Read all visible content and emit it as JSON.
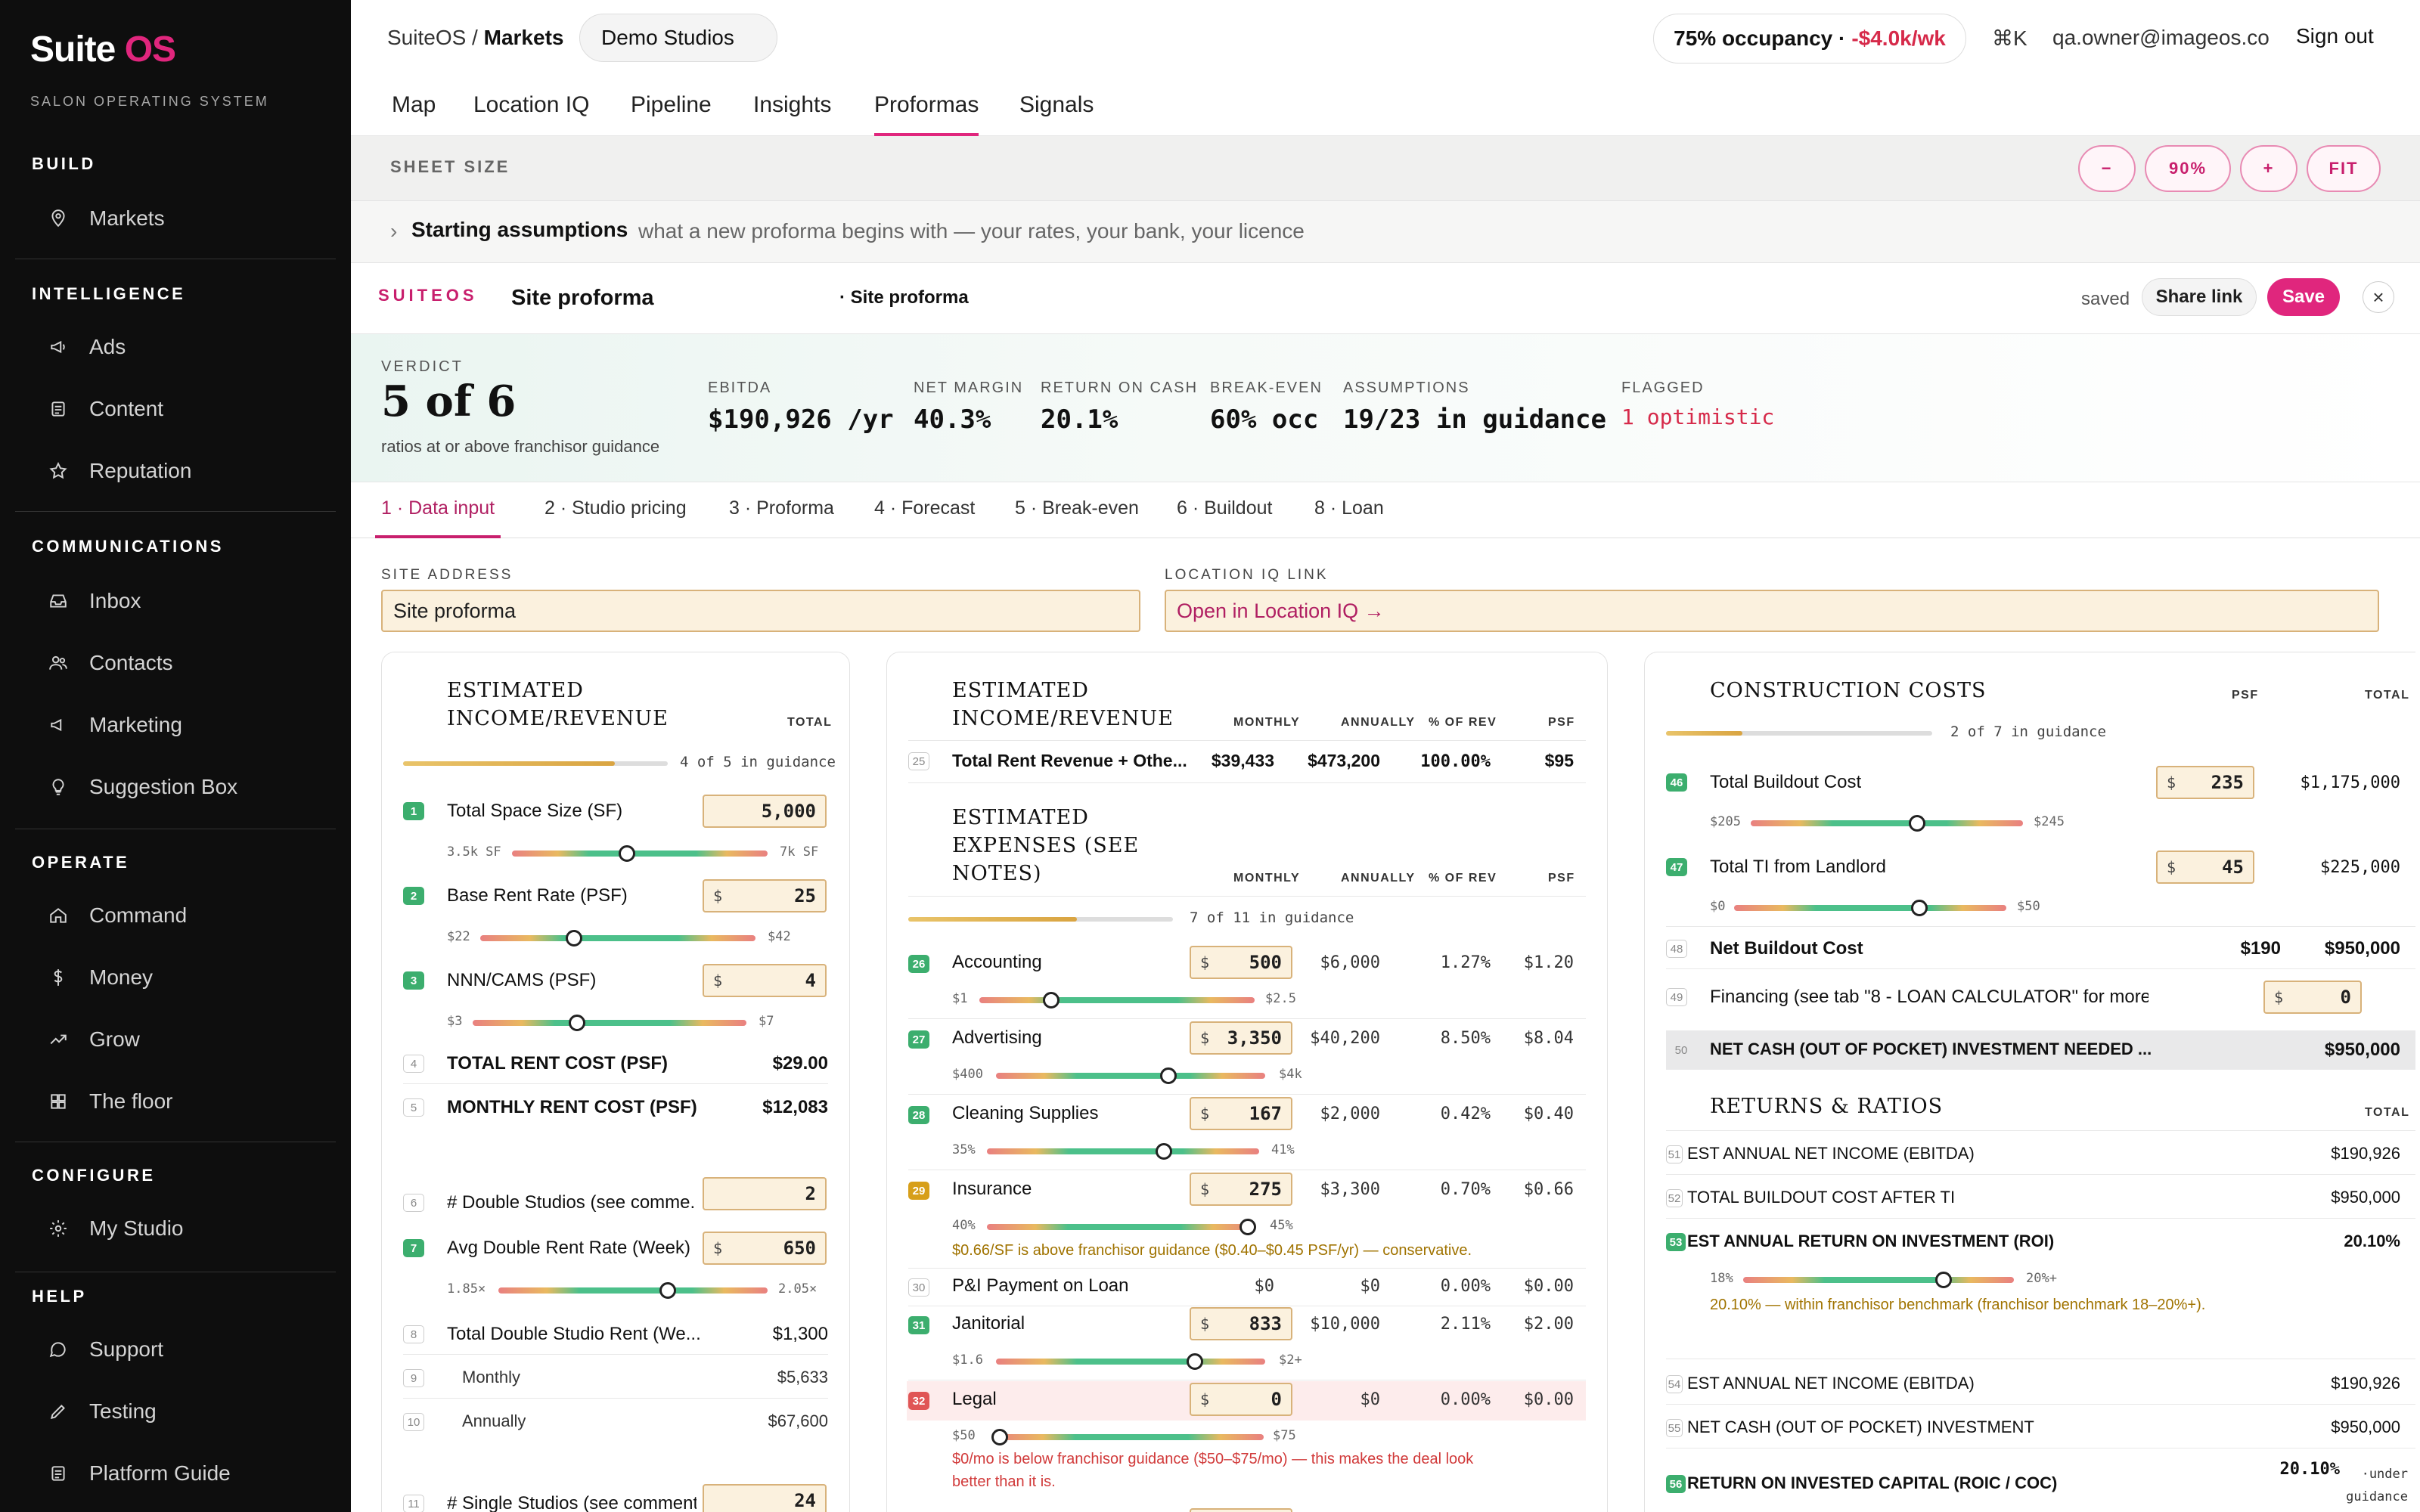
{
  "sidebar": {
    "brand_a": "Suite",
    "brand_b": "OS",
    "subtitle": "SALON OPERATING SYSTEM",
    "sections": {
      "build": "BUILD",
      "intelligence": "INTELLIGENCE",
      "communications": "COMMUNICATIONS",
      "operate": "OPERATE",
      "configure": "CONFIGURE",
      "help": "HELP"
    },
    "items": {
      "markets": "Markets",
      "ads": "Ads",
      "content": "Content",
      "reputation": "Reputation",
      "inbox": "Inbox",
      "contacts": "Contacts",
      "marketing": "Marketing",
      "suggestion": "Suggestion Box",
      "command": "Command",
      "money": "Money",
      "grow": "Grow",
      "floor": "The floor",
      "mystudio": "My Studio",
      "support": "Support",
      "testing": "Testing",
      "guide": "Platform Guide"
    }
  },
  "topbar": {
    "crumb_root": "SuiteOS /",
    "crumb_page": "Markets",
    "studio": "Demo Studios",
    "occupancy": "75% occupancy ·",
    "occupancy_delta": "-$4.0k/wk",
    "shortcut": "⌘K",
    "email": "qa.owner@imageos.co",
    "signout": "Sign out"
  },
  "tabs": {
    "map": "Map",
    "locationiq": "Location IQ",
    "pipeline": "Pipeline",
    "insights": "Insights",
    "proformas": "Proformas",
    "signals": "Signals"
  },
  "sheet": {
    "label": "SHEET SIZE",
    "minus": "−",
    "zoom": "90%",
    "plus": "+",
    "fit": "FIT"
  },
  "assumptions": {
    "chevron": "›",
    "title": "Starting assumptions",
    "desc": "what a new proforma begins with — your rates, your bank, your licence"
  },
  "proforma": {
    "brand": "SUITEOS",
    "title": "Site proforma",
    "subtitle": "· Site proforma",
    "saved": "saved",
    "share": "Share link",
    "save": "Save",
    "close": "×"
  },
  "verdict": {
    "label": "VERDICT",
    "value": "5 of 6",
    "sub": "ratios at or above franchisor guidance",
    "ebitda_l": "EBITDA",
    "ebitda_v": "$190,926 /yr",
    "margin_l": "NET MARGIN",
    "margin_v": "40.3%",
    "roc_l": "RETURN ON CASH",
    "roc_v": "20.1%",
    "be_l": "BREAK-EVEN",
    "be_v": "60% occ",
    "as_l": "ASSUMPTIONS",
    "as_v": "19/23 in guidance",
    "fl_l": "FLAGGED",
    "fl_v": "1 optimistic"
  },
  "subtabs": {
    "t1": "1 · Data input",
    "t2": "2 · Studio pricing",
    "t3": "3 · Proforma",
    "t4": "4 · Forecast",
    "t5": "5 · Break-even",
    "t6": "6 · Buildout",
    "t8": "8 · Loan"
  },
  "fields": {
    "site_label": "SITE ADDRESS",
    "site_value": "Site proforma",
    "liq_label": "LOCATION IQ LINK",
    "liq_value": "Open in Location IQ →"
  },
  "income": {
    "title1": "ESTIMATED",
    "title2": "INCOME/REVENUE",
    "col_total": "TOTAL",
    "progress_text": "4 of 5 in guidance",
    "progress": 0.8,
    "r1": {
      "n": "1",
      "label": "Total Space Size (SF)",
      "value": "5,000",
      "min": "3.5k SF",
      "max": "7k SF",
      "pos": 0.45
    },
    "r2": {
      "n": "2",
      "label": "Base Rent Rate (PSF)",
      "cur": "$",
      "value": "25",
      "min": "$22",
      "max": "$42",
      "pos": 0.34
    },
    "r3": {
      "n": "3",
      "label": "NNN/CAMS (PSF)",
      "cur": "$",
      "value": "4",
      "min": "$3",
      "max": "$7",
      "pos": 0.38
    },
    "r4": {
      "n": "4",
      "label": "TOTAL RENT COST (PSF)",
      "value": "$29.00"
    },
    "r5": {
      "n": "5",
      "label": "MONTHLY RENT COST (PSF)",
      "value": "$12,083"
    },
    "r6": {
      "n": "6",
      "label": "# Double Studios (see comme...",
      "value": "2"
    },
    "r7": {
      "n": "7",
      "label": "Avg Double Rent Rate (Week)",
      "cur": "$",
      "value": "650",
      "min": "1.85×",
      "max": "2.05×",
      "pos": 0.63
    },
    "r8": {
      "n": "8",
      "label": "Total Double Studio Rent (We...",
      "value": "$1,300"
    },
    "r9": {
      "n": "9",
      "label": "Monthly",
      "value": "$5,633"
    },
    "r10": {
      "n": "10",
      "label": "Annually",
      "value": "$67,600"
    },
    "r11": {
      "n": "11",
      "label": "# Single Studios (see comment)",
      "value": "24"
    }
  },
  "expenses": {
    "rev_title1": "ESTIMATED",
    "rev_title2": "INCOME/REVENUE",
    "exp_title1": "ESTIMATED",
    "exp_title2": "EXPENSES (SEE",
    "exp_title3": "NOTES)",
    "cols": {
      "monthly": "MONTHLY",
      "annually": "ANNUALLY",
      "pct": "% OF REV",
      "psf": "PSF"
    },
    "r25": {
      "n": "25",
      "label": "Total Rent Revenue + Othe...",
      "monthly": "$39,433",
      "annually": "$473,200",
      "pct": "100.00%",
      "psf": "$95"
    },
    "progress_text": "7 of 11 in guidance",
    "progress": 0.636,
    "r26": {
      "n": "26",
      "label": "Accounting",
      "cur": "$",
      "value": "500",
      "annually": "$6,000",
      "pct": "1.27%",
      "psf": "$1.20",
      "min": "$1",
      "max": "$2.5",
      "pos": 0.26
    },
    "r27": {
      "n": "27",
      "label": "Advertising",
      "cur": "$",
      "value": "3,350",
      "annually": "$40,200",
      "pct": "8.50%",
      "psf": "$8.04",
      "min": "$400",
      "max": "$4k",
      "pos": 0.64
    },
    "r28": {
      "n": "28",
      "label": "Cleaning Supplies",
      "cur": "$",
      "value": "167",
      "annually": "$2,000",
      "pct": "0.42%",
      "psf": "$0.40",
      "min": "35%",
      "max": "41%",
      "pos": 0.65
    },
    "r29": {
      "n": "29",
      "label": "Insurance",
      "cur": "$",
      "value": "275",
      "annually": "$3,300",
      "pct": "0.70%",
      "psf": "$0.66",
      "min": "40%",
      "max": "45%",
      "pos": 0.97,
      "note": "$0.66/SF is above franchisor guidance ($0.40–$0.45 PSF/yr) — conservative."
    },
    "r30": {
      "n": "30",
      "label": "P&I Payment on Loan",
      "monthly": "$0",
      "annually": "$0",
      "pct": "0.00%",
      "psf": "$0.00"
    },
    "r31": {
      "n": "31",
      "label": "Janitorial",
      "cur": "$",
      "value": "833",
      "annually": "$10,000",
      "pct": "2.11%",
      "psf": "$2.00",
      "min": "$1.6",
      "max": "$2+",
      "pos": 0.74
    },
    "r32": {
      "n": "32",
      "label": "Legal",
      "cur": "$",
      "value": "0",
      "annually": "$0",
      "pct": "0.00%",
      "psf": "$0.00",
      "min": "$50",
      "max": "$75",
      "pos": 0.02,
      "note1": "$0/mo is below franchisor guidance ($50–$75/mo) — this makes the deal look",
      "note2": "better than it is."
    }
  },
  "construction": {
    "title": "CONSTRUCTION COSTS",
    "col_psf": "PSF",
    "col_total": "TOTAL",
    "progress_text": "2 of 7 in guidance",
    "progress": 0.286,
    "r46": {
      "n": "46",
      "label": "Total Buildout Cost",
      "cur": "$",
      "value": "235",
      "total": "$1,175,000",
      "min": "$205",
      "max": "$245",
      "pos": 0.61
    },
    "r47": {
      "n": "47",
      "label": "Total TI from Landlord",
      "cur": "$",
      "value": "45",
      "total": "$225,000",
      "min": "$0",
      "max": "$50",
      "pos": 0.68
    },
    "r48": {
      "n": "48",
      "label": "Net Buildout Cost",
      "psf": "$190",
      "total": "$950,000"
    },
    "r49": {
      "n": "49",
      "label": "Financing (see tab \"8 - LOAN CALCULATOR\" for more i...",
      "cur": "$",
      "value": "0"
    },
    "r50": {
      "n": "50",
      "label": "NET CASH (OUT OF POCKET) INVESTMENT NEEDED ...",
      "total": "$950,000"
    },
    "returns_title": "RETURNS & RATIOS",
    "returns_col": "TOTAL",
    "r51": {
      "n": "51",
      "label": "EST ANNUAL NET INCOME (EBITDA)",
      "value": "$190,926"
    },
    "r52": {
      "n": "52",
      "label": "TOTAL BUILDOUT COST AFTER TI",
      "value": "$950,000"
    },
    "r53": {
      "n": "53",
      "label": "EST ANNUAL RETURN ON INVESTMENT (ROI)",
      "value": "20.10%",
      "min": "18%",
      "max": "20%+",
      "pos": 0.74,
      "note": "20.10% — within franchisor benchmark (franchisor benchmark 18–20%+)."
    },
    "r54": {
      "n": "54",
      "label": "EST ANNUAL NET INCOME (EBITDA)",
      "value": "$190,926"
    },
    "r55": {
      "n": "55",
      "label": "NET CASH (OUT OF POCKET) INVESTMENT",
      "value": "$950,000"
    },
    "r56": {
      "n": "56",
      "label": "RETURN ON INVESTED CAPITAL (ROIC / COC)",
      "value": "20.10%",
      "tag1": "·under",
      "tag2": "guidance"
    }
  },
  "colors": {
    "accent": "#e0267d",
    "ok": "#3cae6e",
    "warn": "#d79f1a",
    "bad": "#e05656",
    "input_bg": "#fbf1de"
  }
}
